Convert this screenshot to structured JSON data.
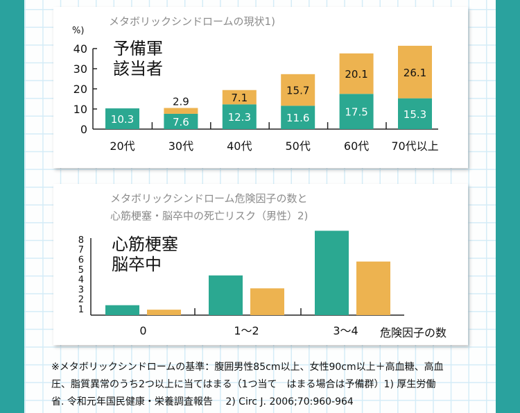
{
  "colors": {
    "teal": "#2ba891",
    "orange": "#edb350",
    "stripe": "#2aa29e"
  },
  "chart_data": [
    {
      "type": "bar",
      "stacked": true,
      "title": "メタボリックシンドロームの現状1)",
      "ylabel": "%)",
      "ylim": [
        0,
        40
      ],
      "yticks": [
        "0",
        "10",
        "20",
        "30",
        "40"
      ],
      "categories": [
        "20代",
        "30代",
        "40代",
        "50代",
        "60代",
        "70代以上"
      ],
      "legend": [
        "予備軍",
        "該当者"
      ],
      "series": [
        {
          "name": "該当者",
          "color": "#2ba891",
          "values": [
            10.3,
            7.6,
            12.3,
            11.6,
            17.5,
            15.3
          ],
          "labels": [
            "10.3",
            "7.6",
            "12.3",
            "11.6",
            "17.5",
            "15.3"
          ]
        },
        {
          "name": "予備軍",
          "color": "#edb350",
          "values": [
            0,
            2.9,
            7.1,
            15.7,
            20.1,
            26.1
          ],
          "labels": [
            "",
            "2.9",
            "7.1",
            "15.7",
            "20.1",
            "26.1"
          ]
        }
      ]
    },
    {
      "type": "bar",
      "title_lines": [
        "メタボリックシンドローム危険因子の数と",
        "心筋梗塞・脳卒中の死亡リスク（男性）2)"
      ],
      "xlabel": "危険因子の数",
      "ylim": [
        0,
        8
      ],
      "yticks": [
        "1",
        "2",
        "3",
        "4",
        "5",
        "6",
        "7",
        "8"
      ],
      "categories": [
        "0",
        "1〜2",
        "3〜4"
      ],
      "series": [
        {
          "name": "心筋梗塞",
          "color": "#2ba891",
          "values": [
            1.0,
            4.0,
            8.5
          ]
        },
        {
          "name": "脳卒中",
          "color": "#edb350",
          "values": [
            0.55,
            2.7,
            5.4
          ]
        }
      ]
    }
  ],
  "footnote": {
    "lines": [
      "※メタボリックシンドロームの基準：腹囲男性85cm以上、女性90cm以上＋高血糖、高血",
      "圧、脂質異常のうち2つ以上に当てはまる（1つ当て　はまる場合は予備群）1) 厚生労働",
      "省. 令和元年国民健康・栄養調査報告　 2) Circ J. 2006;70:960-964"
    ]
  }
}
